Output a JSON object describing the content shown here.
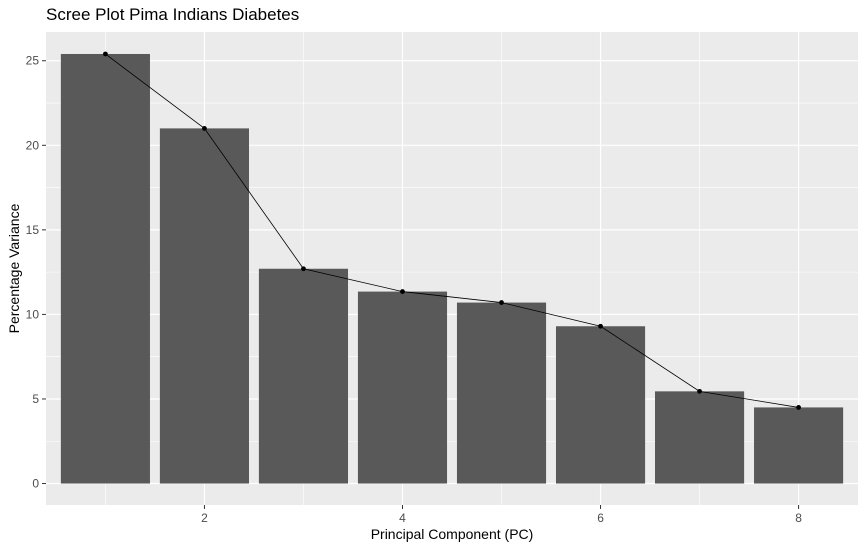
{
  "chart_data": {
    "type": "bar",
    "title": "Scree Plot Pima Indians Diabetes",
    "xlabel": "Principal Component (PC)",
    "ylabel": "Percentage Variance",
    "x": [
      1,
      2,
      3,
      4,
      5,
      6,
      7,
      8
    ],
    "values": [
      25.4,
      21.0,
      12.7,
      11.35,
      10.7,
      9.3,
      5.45,
      4.5
    ],
    "overlay": "line-with-points",
    "xticks": [
      2,
      4,
      6,
      8
    ],
    "yticks": [
      0,
      5,
      10,
      15,
      20,
      25
    ],
    "xlim": [
      0.4,
      8.6
    ],
    "ylim": [
      -1.27,
      26.7
    ],
    "grid": true,
    "colors": {
      "panel": "#ebebeb",
      "grid": "#ffffff",
      "bar": "#595959",
      "line": "#000000"
    }
  }
}
